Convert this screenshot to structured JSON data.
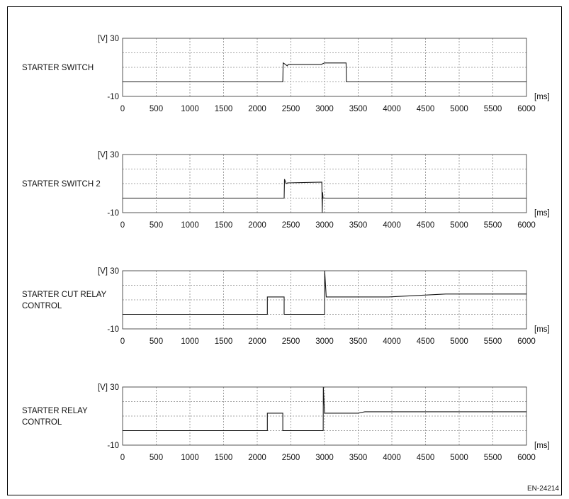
{
  "figure_code": "EN-24214",
  "chart_data": [
    {
      "type": "line",
      "name_lines": [
        "STARTER SWITCH"
      ],
      "y_label": "[V] 30",
      "y_min_label": "-10",
      "x_unit": "[ms]",
      "ylim": [
        -10,
        30
      ],
      "xlim": [
        0,
        6000
      ],
      "x_ticks": [
        "0",
        "500",
        "1000",
        "1500",
        "2000",
        "2500",
        "3000",
        "3500",
        "4000",
        "4500",
        "5000",
        "5500",
        "6000"
      ],
      "grid": true,
      "x": [
        0,
        2380,
        2385,
        2420,
        2445,
        2460,
        2950,
        3000,
        3010,
        3320,
        3325,
        6000
      ],
      "y": [
        0,
        0,
        13,
        12,
        11,
        12,
        12,
        13,
        13,
        13,
        0,
        0
      ]
    },
    {
      "type": "line",
      "name_lines": [
        "STARTER SWITCH 2"
      ],
      "y_label": "[V] 30",
      "y_min_label": "-10",
      "x_unit": "[ms]",
      "ylim": [
        -10,
        30
      ],
      "xlim": [
        0,
        6000
      ],
      "x_ticks": [
        "0",
        "500",
        "1000",
        "1500",
        "2000",
        "2500",
        "3000",
        "3500",
        "4000",
        "4500",
        "5000",
        "5500",
        "6000"
      ],
      "grid": true,
      "x": [
        0,
        2400,
        2405,
        2430,
        2450,
        2960,
        2965,
        2972,
        2978,
        6000
      ],
      "y": [
        0,
        0,
        13,
        10,
        10.5,
        11,
        -10,
        4,
        0,
        0
      ]
    },
    {
      "type": "line",
      "name_lines": [
        "STARTER CUT RELAY",
        "CONTROL"
      ],
      "y_label": "[V] 30",
      "y_min_label": "-10",
      "x_unit": "[ms]",
      "ylim": [
        -10,
        30
      ],
      "xlim": [
        0,
        6000
      ],
      "x_ticks": [
        "0",
        "500",
        "1000",
        "1500",
        "2000",
        "2500",
        "3000",
        "3500",
        "4000",
        "4500",
        "5000",
        "5500",
        "6000"
      ],
      "grid": true,
      "x": [
        0,
        2150,
        2150,
        2400,
        2400,
        3000,
        3002,
        3025,
        3050,
        3950,
        4800,
        6000
      ],
      "y": [
        0,
        0,
        12,
        12,
        0,
        0,
        30,
        12,
        12,
        12,
        14,
        14
      ]
    },
    {
      "type": "line",
      "name_lines": [
        "STARTER RELAY",
        "CONTROL"
      ],
      "y_label": "[V] 30",
      "y_min_label": "-10",
      "x_unit": "[ms]",
      "ylim": [
        -10,
        30
      ],
      "xlim": [
        0,
        6000
      ],
      "x_ticks": [
        "0",
        "500",
        "1000",
        "1500",
        "2000",
        "2500",
        "3000",
        "3500",
        "4000",
        "4500",
        "5000",
        "5500",
        "6000"
      ],
      "grid": true,
      "x": [
        0,
        2150,
        2150,
        2380,
        2380,
        2980,
        2982,
        3000,
        3050,
        3500,
        3600,
        6000
      ],
      "y": [
        0,
        0,
        12,
        12,
        0,
        0,
        30,
        12,
        12,
        12,
        13,
        13
      ]
    }
  ]
}
